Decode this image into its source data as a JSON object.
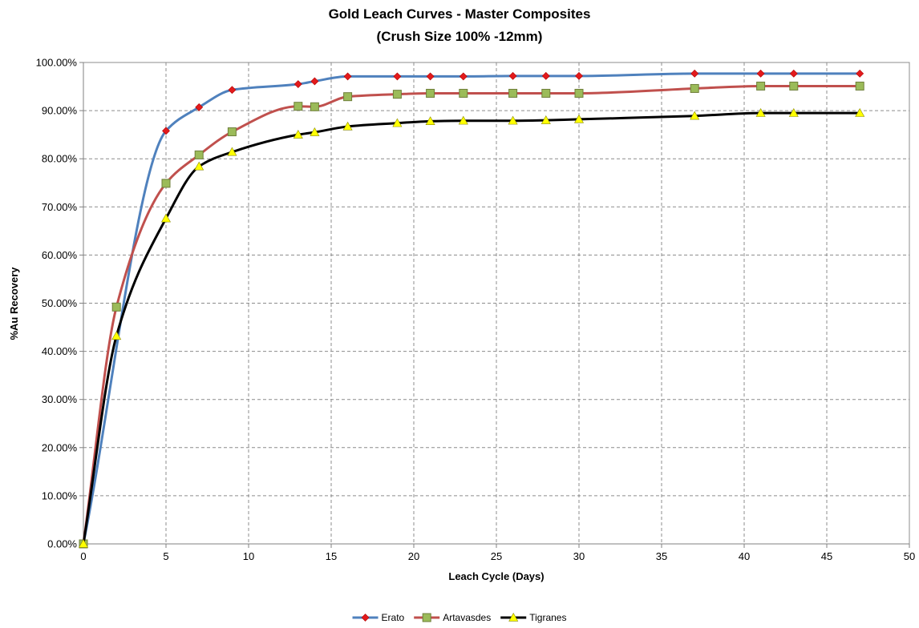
{
  "chart_data": {
    "type": "line",
    "title": "Gold Leach Curves - Master Composites",
    "subtitle": "(Crush Size 100% -12mm)",
    "xlabel": "Leach Cycle (Days)",
    "ylabel": "%Au Recovery",
    "xlim": [
      0,
      50
    ],
    "ylim": [
      0,
      100
    ],
    "x_ticks": [
      "0",
      "5",
      "10",
      "15",
      "20",
      "25",
      "30",
      "35",
      "40",
      "45",
      "50"
    ],
    "y_ticks": [
      "0.00%",
      "10.00%",
      "20.00%",
      "30.00%",
      "40.00%",
      "50.00%",
      "60.00%",
      "70.00%",
      "80.00%",
      "90.00%",
      "100.00%"
    ],
    "grid": true,
    "legend_position": "bottom",
    "series": [
      {
        "name": "Erato",
        "color": "#4f81bd",
        "marker": "diamond",
        "marker_color": "#e31a1c",
        "x": [
          0,
          5,
          7,
          9,
          13,
          14,
          16,
          19,
          21,
          23,
          26,
          28,
          30,
          37,
          41,
          43,
          47
        ],
        "y": [
          0,
          85.8,
          90.7,
          94.3,
          95.5,
          96.1,
          97.1,
          97.1,
          97.1,
          97.1,
          97.2,
          97.2,
          97.2,
          97.7,
          97.7,
          97.7,
          97.7
        ]
      },
      {
        "name": "Artavasdes",
        "color": "#c0504d",
        "marker": "square",
        "marker_color": "#9bbb59",
        "x": [
          0,
          2,
          5,
          7,
          9,
          13,
          14,
          16,
          19,
          21,
          23,
          26,
          28,
          30,
          37,
          41,
          43,
          47
        ],
        "y": [
          0,
          49.2,
          74.9,
          80.8,
          85.6,
          90.9,
          90.8,
          92.9,
          93.4,
          93.6,
          93.6,
          93.6,
          93.6,
          93.6,
          94.6,
          95.1,
          95.1,
          95.1
        ]
      },
      {
        "name": "Tigranes",
        "color": "#000000",
        "marker": "triangle",
        "marker_color": "#ffff00",
        "x": [
          0,
          2,
          5,
          7,
          9,
          13,
          14,
          16,
          19,
          21,
          23,
          26,
          28,
          30,
          37,
          41,
          43,
          47
        ],
        "y": [
          0,
          43.2,
          67.6,
          78.4,
          81.4,
          85.0,
          85.5,
          86.7,
          87.4,
          87.8,
          87.9,
          87.9,
          88.0,
          88.2,
          88.9,
          89.5,
          89.5,
          89.5
        ]
      }
    ]
  }
}
